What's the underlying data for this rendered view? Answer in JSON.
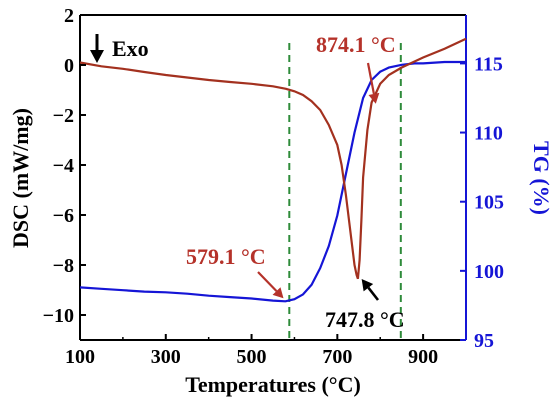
{
  "chart_data": {
    "type": "line",
    "title": "",
    "xlabel": "Temperatures (°C)",
    "ylabel_left": "DSC (mW/mg)",
    "ylabel_right": "TG (%)",
    "xlim": [
      100,
      1000
    ],
    "ylim_left": [
      -11,
      2
    ],
    "ylim_right": [
      95,
      118.5
    ],
    "x_ticks": [
      100,
      300,
      500,
      700,
      900
    ],
    "x_tick_labels": [
      "100",
      "300",
      "500",
      "700",
      "900"
    ],
    "y_left_ticks": [
      -10,
      -8,
      -6,
      -4,
      -2,
      0,
      2
    ],
    "y_left_tick_labels": [
      "−10",
      "−8",
      "−6",
      "−4",
      "−2",
      "0",
      "2"
    ],
    "y_right_ticks": [
      95,
      100,
      105,
      110,
      115
    ],
    "y_right_tick_labels": [
      "95",
      "100",
      "105",
      "110",
      "115"
    ],
    "grid": false,
    "exo_label": "Exo",
    "colors": {
      "dsc": "#a3311f",
      "tg": "#1515d6",
      "left_axis": "#000000",
      "right_axis": "#1515d6",
      "vline": "#2e8b3a",
      "annotation_red": "#b5322a",
      "annotation_black": "#000000"
    },
    "vlines": [
      588,
      848
    ],
    "series": [
      {
        "name": "DSC",
        "axis": "left",
        "x": [
          100,
          150,
          200,
          250,
          300,
          350,
          400,
          450,
          500,
          550,
          580,
          600,
          620,
          640,
          660,
          680,
          700,
          710,
          720,
          730,
          740,
          745,
          748,
          752,
          756,
          760,
          770,
          780,
          800,
          820,
          850,
          900,
          950,
          1000
        ],
        "y": [
          0.1,
          -0.05,
          -0.15,
          -0.28,
          -0.4,
          -0.5,
          -0.6,
          -0.68,
          -0.75,
          -0.85,
          -0.95,
          -1.05,
          -1.2,
          -1.45,
          -1.8,
          -2.4,
          -3.2,
          -4.0,
          -5.2,
          -6.6,
          -8.0,
          -8.4,
          -8.55,
          -7.8,
          -6.2,
          -4.5,
          -2.6,
          -1.5,
          -0.75,
          -0.4,
          -0.1,
          0.3,
          0.65,
          1.05
        ]
      },
      {
        "name": "TG",
        "axis": "right",
        "x": [
          100,
          150,
          200,
          250,
          300,
          350,
          400,
          450,
          500,
          550,
          579,
          600,
          620,
          640,
          660,
          680,
          700,
          720,
          740,
          760,
          780,
          800,
          820,
          850,
          880,
          900,
          950,
          1000
        ],
        "y": [
          98.8,
          98.7,
          98.6,
          98.5,
          98.45,
          98.35,
          98.2,
          98.1,
          98.0,
          97.85,
          97.8,
          97.95,
          98.3,
          99.0,
          100.2,
          101.8,
          104.0,
          107.0,
          110.0,
          112.5,
          113.8,
          114.4,
          114.7,
          114.9,
          115.0,
          115.0,
          115.1,
          115.1
        ]
      }
    ],
    "annotations": [
      {
        "label": "874.1 °C",
        "x": 874.1,
        "color": "red"
      },
      {
        "label": "579.1 °C",
        "x": 579.1,
        "color": "red"
      },
      {
        "label": "747.8 °C",
        "x": 747.8,
        "color": "black"
      }
    ]
  }
}
